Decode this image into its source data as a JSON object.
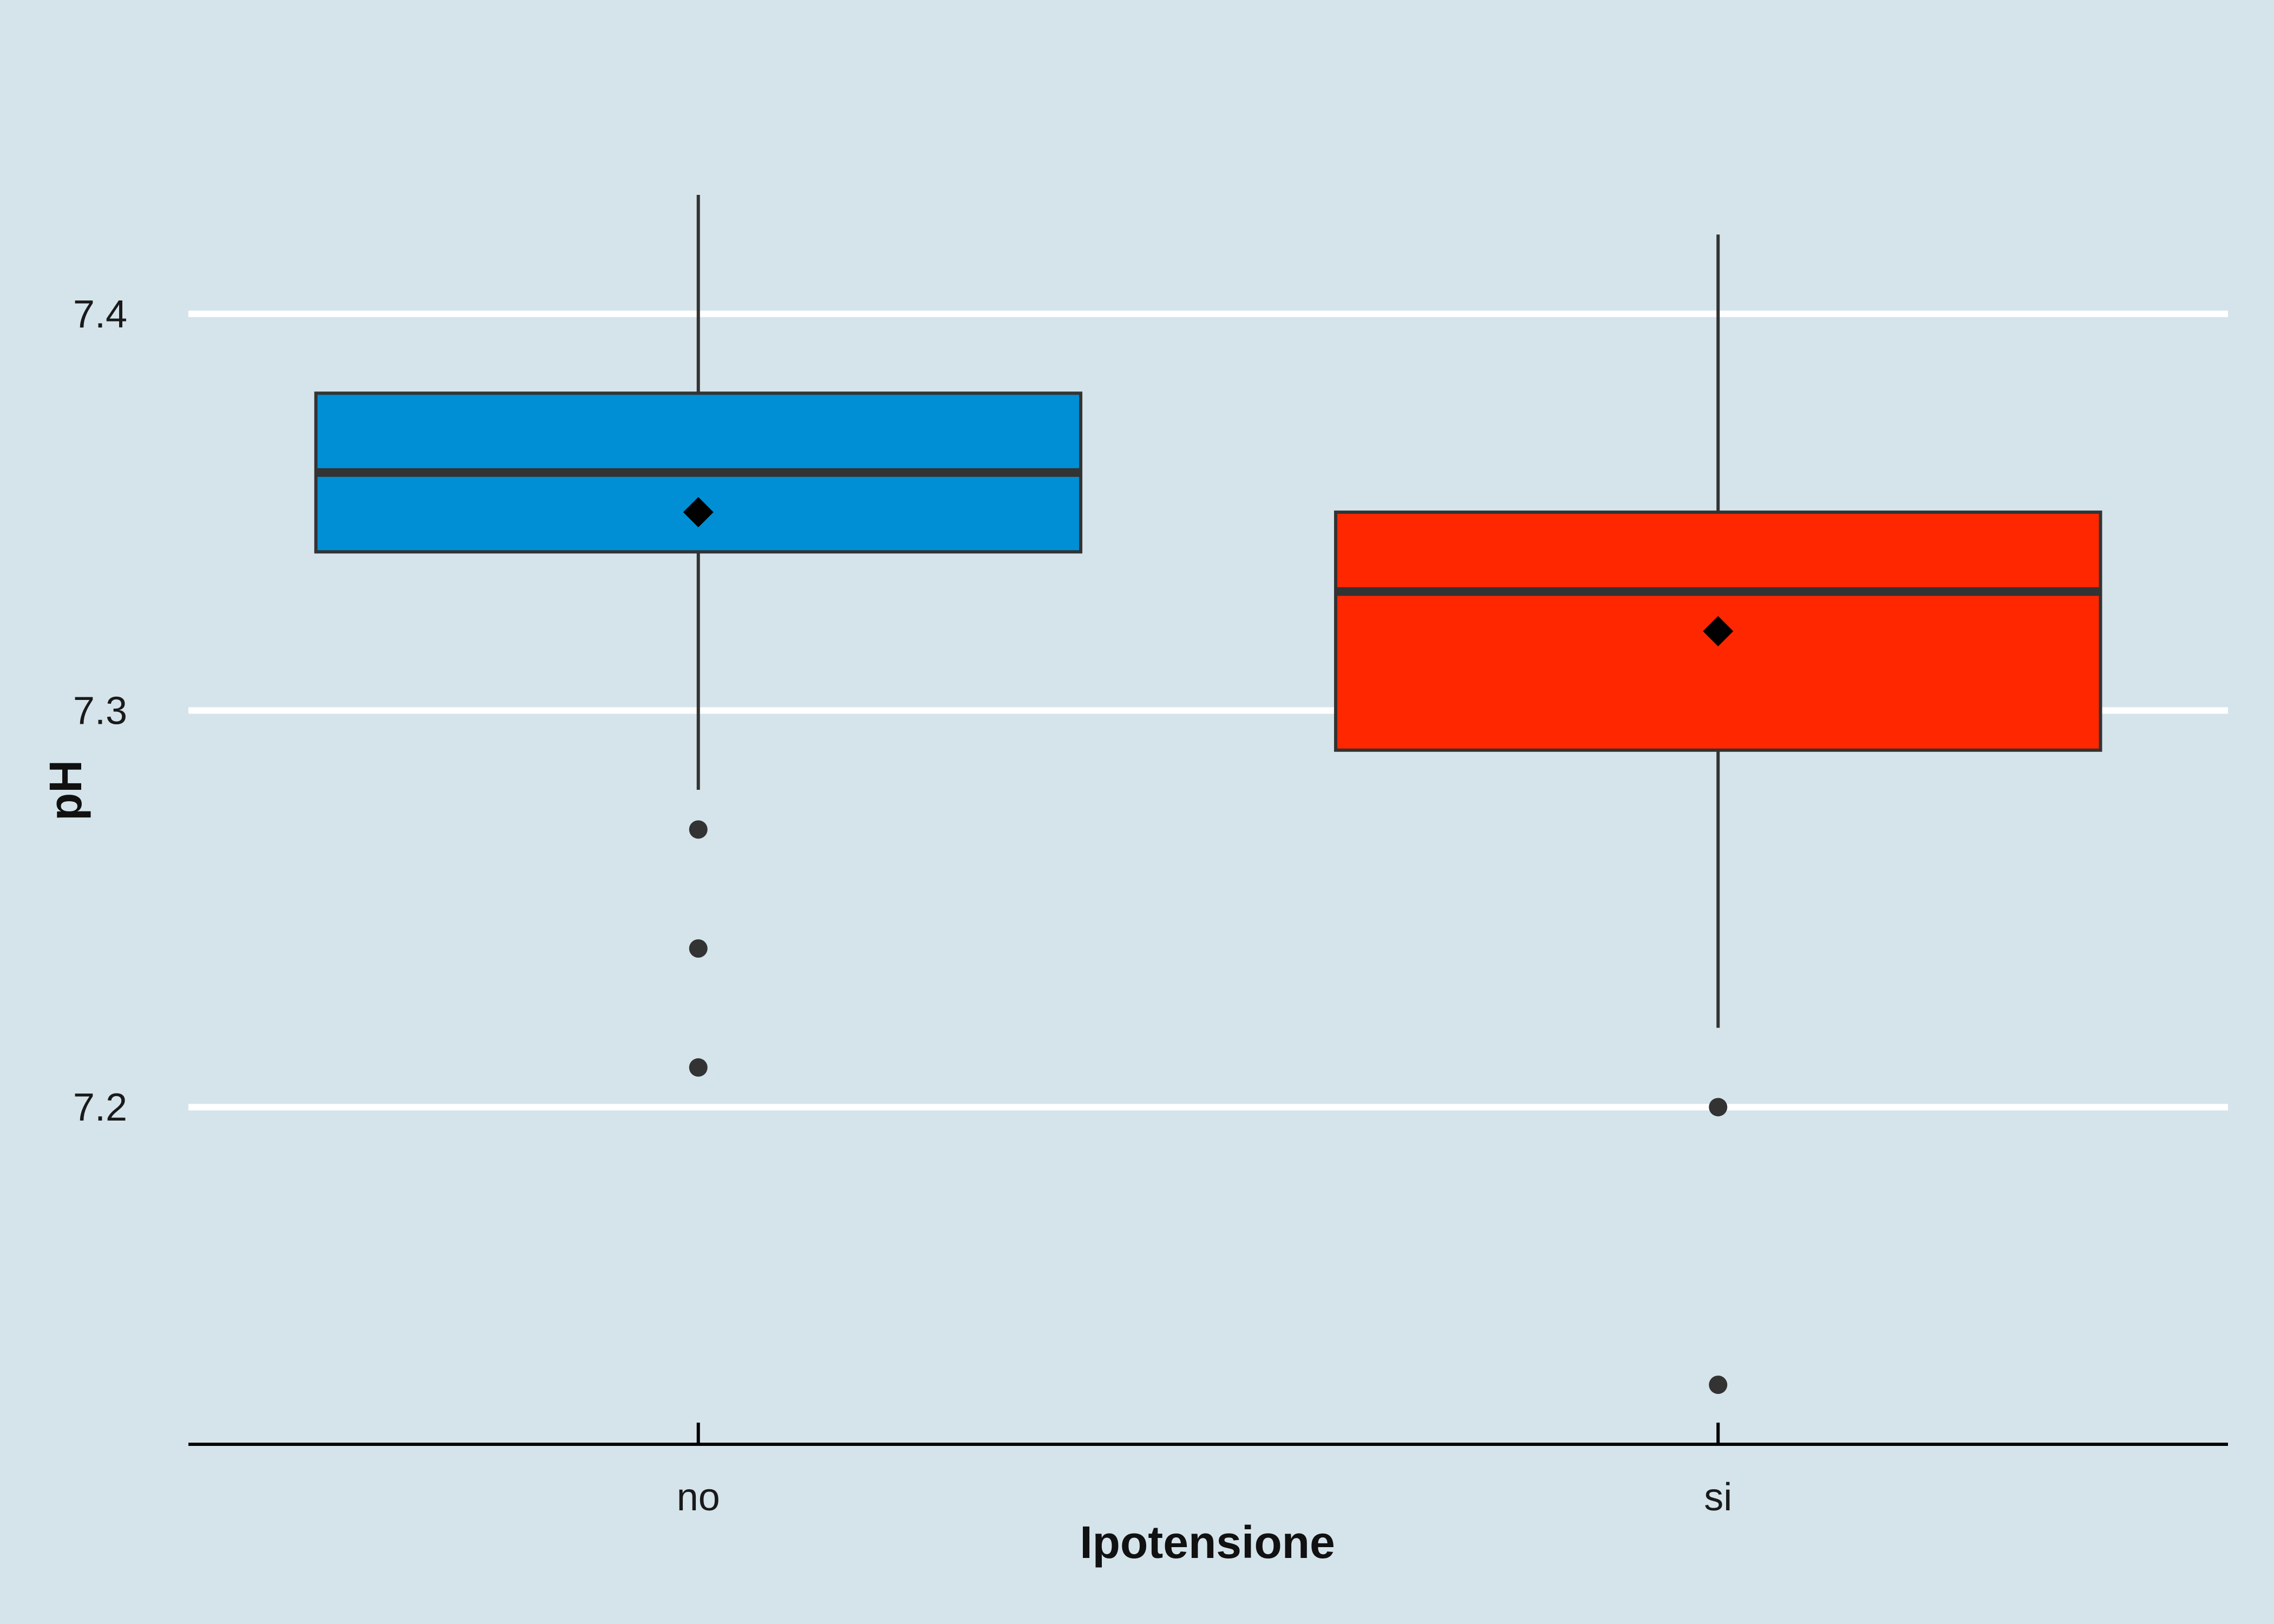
{
  "chart_data": {
    "type": "box",
    "xlabel": "Ipotensione",
    "ylabel": "pH",
    "categories": [
      "no",
      "si"
    ],
    "ylim": [
      7.115,
      7.43
    ],
    "yticks": [
      7.2,
      7.3,
      7.4
    ],
    "grid": "horizontal major only",
    "legend": "none",
    "background_color": "#d5e4eb",
    "grid_color": "#ffffff",
    "box_outline_color": "#333333",
    "mean_marker": "diamond",
    "series": [
      {
        "category": "no",
        "color": "#008fd5",
        "whisker_low": 7.28,
        "q1": 7.34,
        "median": 7.36,
        "q3": 7.38,
        "whisker_high": 7.43,
        "mean": 7.35,
        "outliers": [
          7.27,
          7.24,
          7.21
        ]
      },
      {
        "category": "si",
        "color": "#ff2700",
        "whisker_low": 7.22,
        "q1": 7.29,
        "median": 7.33,
        "q3": 7.35,
        "whisker_high": 7.42,
        "mean": 7.32,
        "outliers": [
          7.2,
          7.13
        ]
      }
    ]
  }
}
